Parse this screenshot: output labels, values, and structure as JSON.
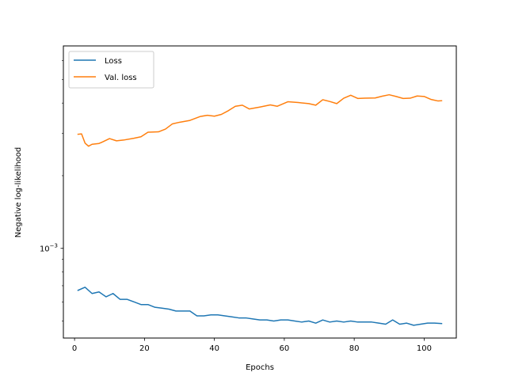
{
  "chart_data": {
    "type": "line",
    "title": "",
    "xlabel": "Epochs",
    "ylabel": "Negative log-likelihood",
    "xlim": [
      -3.2,
      109.2
    ],
    "ylim": [
      0.000425,
      0.0069
    ],
    "yscale": "log",
    "x_ticks": [
      0,
      20,
      40,
      60,
      80,
      100
    ],
    "x_tick_labels": [
      "0",
      "20",
      "40",
      "60",
      "80",
      "100"
    ],
    "y_tick_label": {
      "base": "10",
      "exponent": "−3"
    },
    "y_tick_value": 0.001,
    "grid": false,
    "legend_position": "top-left",
    "series": [
      {
        "name": "Loss",
        "color": "#1f77b4",
        "x": [
          1,
          3,
          5,
          7,
          9,
          11,
          13,
          15,
          17,
          19,
          21,
          23,
          25,
          27,
          29,
          31,
          33,
          35,
          37,
          39,
          41,
          43,
          45,
          47,
          49,
          51,
          53,
          55,
          57,
          59,
          61,
          63,
          65,
          67,
          69,
          71,
          73,
          75,
          77,
          79,
          81,
          83,
          85,
          87,
          89,
          91,
          93,
          95,
          97,
          99,
          101,
          103,
          105
        ],
        "y": [
          0.00067,
          0.00069,
          0.00065,
          0.00066,
          0.00063,
          0.00065,
          0.000615,
          0.000615,
          0.0006,
          0.000585,
          0.000585,
          0.00057,
          0.000565,
          0.00056,
          0.00055,
          0.00055,
          0.00055,
          0.000525,
          0.000525,
          0.00053,
          0.00053,
          0.000525,
          0.00052,
          0.000515,
          0.000515,
          0.00051,
          0.000505,
          0.000505,
          0.0005,
          0.000505,
          0.000505,
          0.0005,
          0.000495,
          0.0005,
          0.00049,
          0.000505,
          0.000495,
          0.0005,
          0.000495,
          0.0005,
          0.000495,
          0.000495,
          0.000495,
          0.00049,
          0.000485,
          0.000505,
          0.000485,
          0.00049,
          0.00048,
          0.000485,
          0.00049,
          0.00049,
          0.000488
        ]
      },
      {
        "name": "Val. loss",
        "color": "#ff7f0e",
        "x": [
          1,
          2,
          3,
          4,
          5,
          7,
          8,
          10,
          12,
          14,
          17,
          19,
          21,
          24,
          26,
          28,
          30,
          33,
          36,
          38,
          40,
          42,
          44,
          46,
          48,
          50,
          53,
          56,
          58,
          61,
          64,
          67,
          69,
          71,
          73,
          75,
          77,
          79,
          81,
          83,
          86,
          88,
          90,
          92,
          94,
          96,
          98,
          100,
          102,
          104,
          105
        ],
        "y": [
          0.00297,
          0.00298,
          0.00273,
          0.00265,
          0.0027,
          0.00272,
          0.00276,
          0.00285,
          0.00279,
          0.00281,
          0.00286,
          0.0029,
          0.00303,
          0.00304,
          0.00312,
          0.00328,
          0.00333,
          0.00339,
          0.00352,
          0.00356,
          0.00353,
          0.00359,
          0.00372,
          0.00388,
          0.00392,
          0.00378,
          0.00385,
          0.00393,
          0.00388,
          0.00405,
          0.00402,
          0.00398,
          0.00392,
          0.00413,
          0.00406,
          0.00398,
          0.00419,
          0.00431,
          0.00418,
          0.00419,
          0.0042,
          0.00427,
          0.00433,
          0.00426,
          0.00418,
          0.00419,
          0.00428,
          0.00426,
          0.00414,
          0.00408,
          0.00409
        ]
      }
    ]
  }
}
